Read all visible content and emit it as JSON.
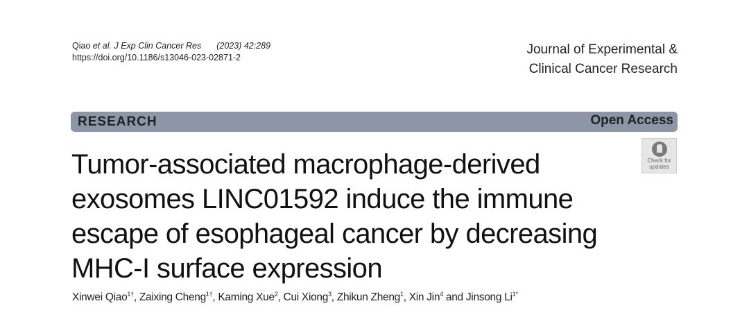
{
  "citation": {
    "author": "Qiao",
    "etal": "et al.",
    "journal_abbrev": "J Exp Clin Cancer Res",
    "year_volume": "(2023) 42:289",
    "doi": "https://doi.org/10.1186/s13046-023-02871-2"
  },
  "journal": {
    "line1": "Journal of Experimental &",
    "line2": "Clinical Cancer Research"
  },
  "banner": {
    "type": "RESEARCH",
    "access": "Open Access",
    "color": "#8c96a6"
  },
  "badge": {
    "line1": "Check for",
    "line2": "updates",
    "icon": "crossmark-icon"
  },
  "title_lines": [
    "Tumor-associated macrophage-derived",
    "exosomes LINC01592 induce the immune",
    "escape of esophageal cancer by decreasing",
    "MHC-I surface expression"
  ],
  "authors": [
    {
      "name": "Xinwei Qiao",
      "sup": "1†",
      "sep": ", "
    },
    {
      "name": "Zaixing Cheng",
      "sup": "1†",
      "sep": ", "
    },
    {
      "name": "Kaming Xue",
      "sup": "2",
      "sep": ", "
    },
    {
      "name": "Cui Xiong",
      "sup": "3",
      "sep": ", "
    },
    {
      "name": "Zhikun Zheng",
      "sup": "1",
      "sep": ", "
    },
    {
      "name": "Xin Jin",
      "sup": "4",
      "sep": " and "
    },
    {
      "name": "Jinsong Li",
      "sup": "1*",
      "sep": ""
    }
  ]
}
